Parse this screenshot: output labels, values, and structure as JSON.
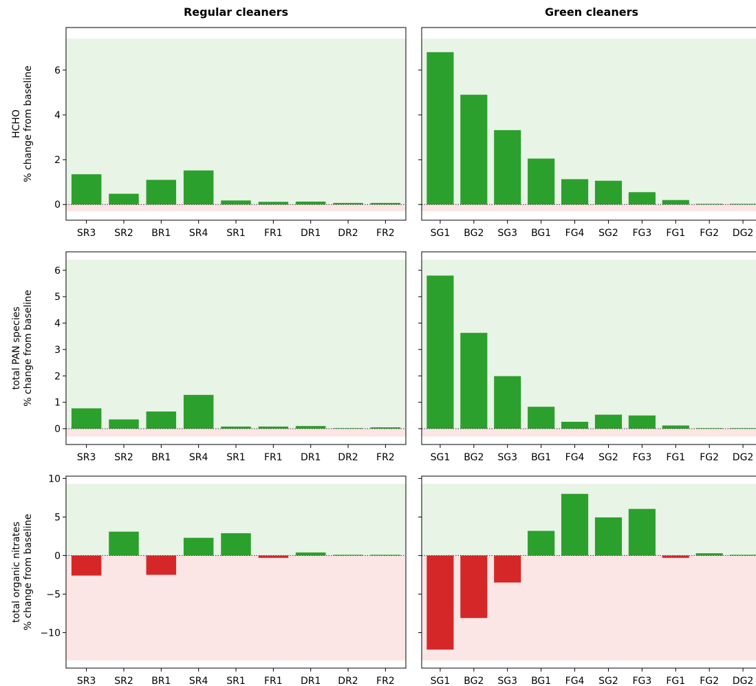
{
  "column_titles": [
    "Regular cleaners",
    "Green cleaners"
  ],
  "colors": {
    "positive": "#2ca02c",
    "negative": "#d62728",
    "pos_band": "#e8f4e6",
    "neg_band": "#fbe5e5"
  },
  "chart_data": [
    {
      "type": "bar",
      "panel": "regular-hcho",
      "ylabel": [
        "HCHO",
        "% change from baseline"
      ],
      "categories": [
        "SR3",
        "SR2",
        "BR1",
        "SR4",
        "SR1",
        "FR1",
        "DR1",
        "DR2",
        "FR2"
      ],
      "values": [
        1.35,
        0.48,
        1.1,
        1.52,
        0.18,
        0.12,
        0.13,
        0.07,
        0.07
      ],
      "ylim": [
        -0.7,
        7.9
      ],
      "yticks": [
        0,
        2,
        4,
        6
      ],
      "band": [
        -0.3,
        7.4
      ]
    },
    {
      "type": "bar",
      "panel": "green-hcho",
      "categories": [
        "SG1",
        "BG2",
        "SG3",
        "BG1",
        "FG4",
        "SG2",
        "FG3",
        "FG1",
        "FG2",
        "DG2"
      ],
      "values": [
        6.8,
        4.9,
        3.32,
        2.05,
        1.13,
        1.06,
        0.55,
        0.2,
        0.03,
        0.03
      ],
      "ylim": [
        -0.7,
        7.9
      ],
      "yticks": [
        0,
        2,
        4,
        6
      ],
      "band": [
        -0.3,
        7.4
      ]
    },
    {
      "type": "bar",
      "panel": "regular-pan",
      "ylabel": [
        "total PAN species",
        "% change from baseline"
      ],
      "categories": [
        "SR3",
        "SR2",
        "BR1",
        "SR4",
        "SR1",
        "FR1",
        "DR1",
        "DR2",
        "FR2"
      ],
      "values": [
        0.77,
        0.35,
        0.65,
        1.28,
        0.08,
        0.08,
        0.1,
        0.02,
        0.05
      ],
      "ylim": [
        -0.6,
        6.7
      ],
      "yticks": [
        0,
        1,
        2,
        3,
        4,
        5,
        6
      ],
      "band": [
        -0.3,
        6.4
      ]
    },
    {
      "type": "bar",
      "panel": "green-pan",
      "categories": [
        "SG1",
        "BG2",
        "SG3",
        "BG1",
        "FG4",
        "SG2",
        "FG3",
        "FG1",
        "FG2",
        "DG2"
      ],
      "values": [
        5.8,
        3.63,
        1.99,
        0.83,
        0.26,
        0.53,
        0.5,
        0.12,
        0.02,
        0.02
      ],
      "ylim": [
        -0.6,
        6.7
      ],
      "yticks": [
        0,
        1,
        2,
        3,
        4,
        5,
        6
      ],
      "band": [
        -0.3,
        6.4
      ]
    },
    {
      "type": "bar",
      "panel": "regular-nitrates",
      "ylabel": [
        "total organic nitrates",
        "% change from baseline"
      ],
      "categories": [
        "SR3",
        "SR2",
        "BR1",
        "SR4",
        "SR1",
        "FR1",
        "DR1",
        "DR2",
        "FR2"
      ],
      "values": [
        -2.6,
        3.1,
        -2.5,
        2.3,
        2.9,
        -0.3,
        0.4,
        0.1,
        0.1
      ],
      "ylim": [
        -14.6,
        10.3
      ],
      "yticks": [
        -10,
        -5,
        0,
        5,
        10
      ],
      "band": [
        -13.6,
        9.3
      ]
    },
    {
      "type": "bar",
      "panel": "green-nitrates",
      "categories": [
        "SG1",
        "BG2",
        "SG3",
        "BG1",
        "FG4",
        "SG2",
        "FG3",
        "FG1",
        "FG2",
        "DG2"
      ],
      "values": [
        -12.2,
        -8.1,
        -3.5,
        3.2,
        8.0,
        4.95,
        6.05,
        -0.3,
        0.3,
        0.1
      ],
      "ylim": [
        -14.6,
        10.3
      ],
      "yticks": [
        -10,
        -5,
        0,
        5,
        10
      ],
      "band": [
        -13.6,
        9.3
      ]
    }
  ]
}
